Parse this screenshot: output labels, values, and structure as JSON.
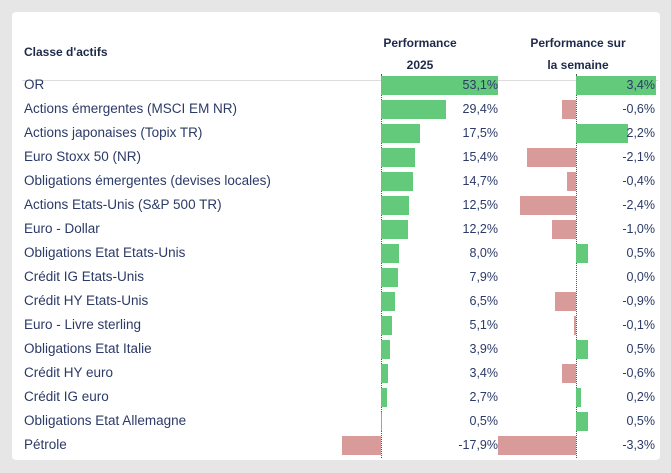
{
  "chart_data": {
    "type": "bar-table",
    "category_header": "Classe d'actifs",
    "categories": [
      "OR",
      "Actions émergentes (MSCI EM NR)",
      "Actions japonaises (Topix TR)",
      "Euro Stoxx 50 (NR)",
      "Obligations émergentes (devises locales)",
      "Actions Etats-Unis (S&P 500 TR)",
      "Euro - Dollar",
      "Obligations Etat Etats-Unis",
      "Crédit IG Etats-Unis",
      "Crédit HY Etats-Unis",
      "Euro - Livre sterling",
      "Obligations Etat Italie",
      "Crédit HY euro",
      "Crédit IG euro",
      "Obligations Etat Allemagne",
      "Pétrole"
    ],
    "series": [
      {
        "name": "Performance 2025",
        "positive_color": "#63c97b",
        "negative_color": "#d99a9a",
        "values": [
          53.1,
          29.4,
          17.5,
          15.4,
          14.7,
          12.5,
          12.2,
          8.0,
          7.9,
          6.5,
          5.1,
          3.9,
          3.4,
          2.7,
          0.5,
          -17.9
        ],
        "value_labels": [
          "53,1%",
          "29,4%",
          "17,5%",
          "15,4%",
          "14,7%",
          "12,5%",
          "12,2%",
          "8,0%",
          "7,9%",
          "6,5%",
          "5,1%",
          "3,9%",
          "3,4%",
          "2,7%",
          "0,5%",
          "-17,9%"
        ]
      },
      {
        "name": "Performance sur la semaine",
        "positive_color": "#63c97b",
        "negative_color": "#d99a9a",
        "values": [
          3.4,
          -0.6,
          2.2,
          -2.1,
          -0.4,
          -2.4,
          -1.0,
          0.5,
          0.0,
          -0.9,
          -0.1,
          0.5,
          -0.6,
          0.2,
          0.5,
          -3.3
        ],
        "value_labels": [
          "3,4%",
          "-0,6%",
          "2,2%",
          "-2,1%",
          "-0,4%",
          "-2,4%",
          "-1,0%",
          "0,5%",
          "0,0%",
          "-0,9%",
          "-0,1%",
          "0,5%",
          "-0,6%",
          "0,2%",
          "0,5%",
          "-3,3%"
        ]
      }
    ]
  }
}
